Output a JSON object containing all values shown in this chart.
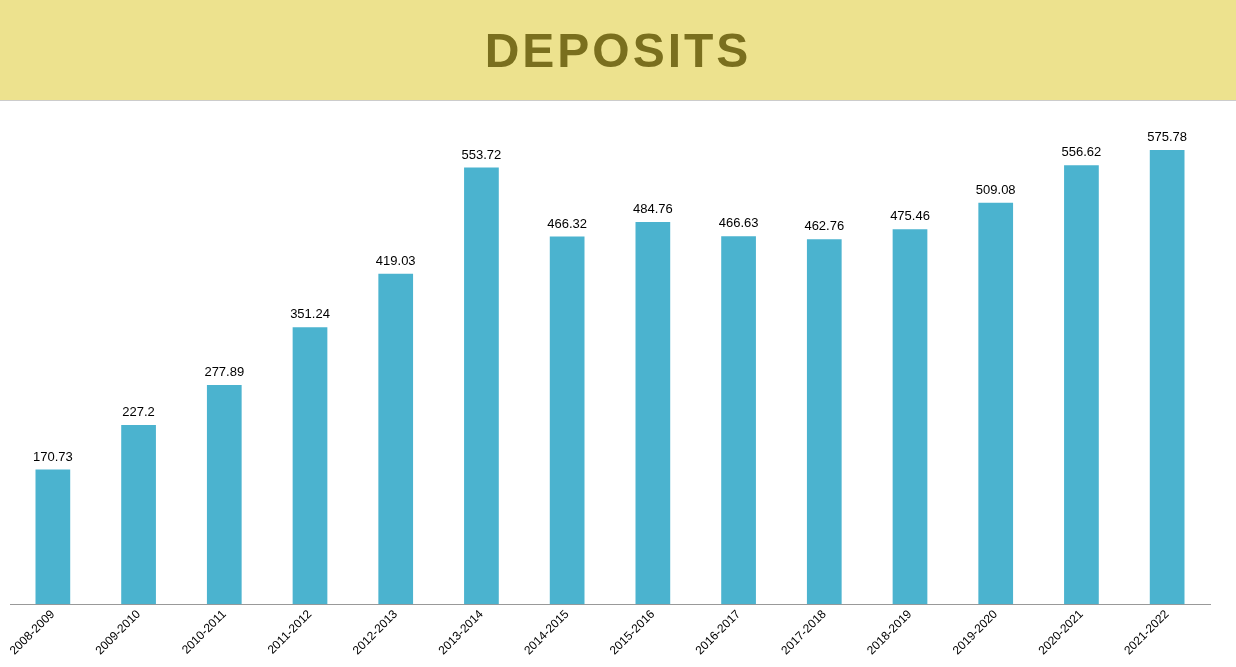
{
  "chart_data": {
    "type": "bar",
    "title": "DEPOSITS",
    "categories": [
      "2008-2009",
      "2009-2010",
      "2010-2011",
      "2011-2012",
      "2012-2013",
      "2013-2014",
      "2014-2015",
      "2015-2016",
      "2016-2017",
      "2017-2018",
      "2018-2019",
      "2019-2020",
      "2020-2021",
      "2021-2022"
    ],
    "values": [
      170.73,
      227.2,
      277.89,
      351.24,
      419.03,
      553.72,
      466.32,
      484.76,
      466.63,
      462.76,
      475.46,
      509.08,
      556.62,
      575.78
    ],
    "color": "#4bb3cf",
    "data_labels": true,
    "grid": false,
    "legend": false,
    "tick_labels": "x"
  }
}
